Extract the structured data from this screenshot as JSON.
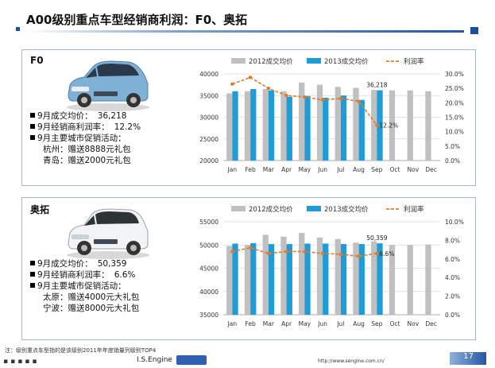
{
  "page_title": "A00级别重点车型经销商利润：F0、奥拓",
  "panels": [
    {
      "name": "F0",
      "info": {
        "price_label": "9月成交均价：",
        "price_value": "36,218",
        "margin_label": "9月经销商利润率：",
        "margin_value": "12.2%",
        "promo_label": "9月主要城市促销活动：",
        "promos": [
          "杭州：赠送8888元礼包",
          "青岛：赠送2000元礼包"
        ]
      }
    },
    {
      "name": "奥拓",
      "info": {
        "price_label": "9月成交均价：",
        "price_value": "50,359",
        "margin_label": "9月经销商利润率：",
        "margin_value": "6.6%",
        "promo_label": "9月主要城市促销活动：",
        "promos": [
          "太原：赠送4000元大礼包",
          "宁波：赠送8000元大礼包"
        ]
      }
    }
  ],
  "chart_data": [
    {
      "type": "bar",
      "categories": [
        "Jan",
        "Feb",
        "Mar",
        "Apr",
        "May",
        "Jun",
        "Jul",
        "Aug",
        "Sep",
        "Oct",
        "Nov",
        "Dec"
      ],
      "series": [
        {
          "name": "2012成交均价",
          "kind": "bar",
          "axis": "left",
          "color": "#c0c0c0",
          "values": [
            35500,
            36000,
            36500,
            36000,
            38000,
            37500,
            37000,
            36800,
            36300,
            36200,
            36200,
            36000
          ]
        },
        {
          "name": "2013成交均价",
          "kind": "bar",
          "axis": "left",
          "color": "#1f9bd7",
          "values": [
            36000,
            36500,
            36200,
            34700,
            34900,
            34500,
            35000,
            34000,
            36218,
            null,
            null,
            null
          ]
        },
        {
          "name": "利润率",
          "kind": "line",
          "axis": "right",
          "color": "#e07b2e",
          "values": [
            26.5,
            28.8,
            25.0,
            22.5,
            22.0,
            21.0,
            21.5,
            20.5,
            12.2,
            null,
            null,
            null
          ]
        }
      ],
      "ylim": [
        20000,
        40000
      ],
      "yticks": [
        "20000",
        "25000",
        "30000",
        "35000",
        "40000"
      ],
      "y2lim": [
        0,
        30
      ],
      "y2ticks": [
        "0.0%",
        "5.0%",
        "10.0%",
        "15.0%",
        "20.0%",
        "25.0%",
        "30.0%"
      ],
      "labels": {
        "bar_label": "36,218",
        "line_label": "12.2%"
      },
      "legend_position": "top"
    },
    {
      "type": "bar",
      "categories": [
        "Jan",
        "Feb",
        "Mar",
        "Apr",
        "May",
        "Jun",
        "Jul",
        "Aug",
        "Sep",
        "Oct",
        "Nov",
        "Dec"
      ],
      "series": [
        {
          "name": "2012成交均价",
          "kind": "bar",
          "axis": "left",
          "color": "#c0c0c0",
          "values": [
            49800,
            50000,
            52200,
            51800,
            52600,
            51600,
            51300,
            50500,
            50800,
            50000,
            50000,
            50100
          ]
        },
        {
          "name": "2013成交均价",
          "kind": "bar",
          "axis": "left",
          "color": "#1f9bd7",
          "values": [
            50300,
            50400,
            50200,
            50200,
            50300,
            50300,
            50200,
            50200,
            50359,
            null,
            null,
            null
          ]
        },
        {
          "name": "利润率",
          "kind": "line",
          "axis": "right",
          "color": "#e07b2e",
          "values": [
            6.8,
            7.2,
            6.6,
            6.8,
            6.8,
            6.6,
            6.5,
            6.3,
            6.6,
            null,
            null,
            null
          ]
        }
      ],
      "ylim": [
        35000,
        55000
      ],
      "yticks": [
        "35000",
        "40000",
        "45000",
        "50000",
        "55000"
      ],
      "y2lim": [
        0,
        10
      ],
      "y2ticks": [
        "0.0%",
        "2.0%",
        "4.0%",
        "6.0%",
        "8.0%",
        "10.0%"
      ],
      "labels": {
        "bar_label": "50,359",
        "line_label": "6.6%"
      },
      "legend_position": "top"
    }
  ],
  "footnote": "注：级别重点车型指的是该级别2011年年度销量列级别TOP4",
  "footer": {
    "engine": "I.S.Engine",
    "url": "http://www.sengine.com.cn/",
    "page_number": "17"
  }
}
